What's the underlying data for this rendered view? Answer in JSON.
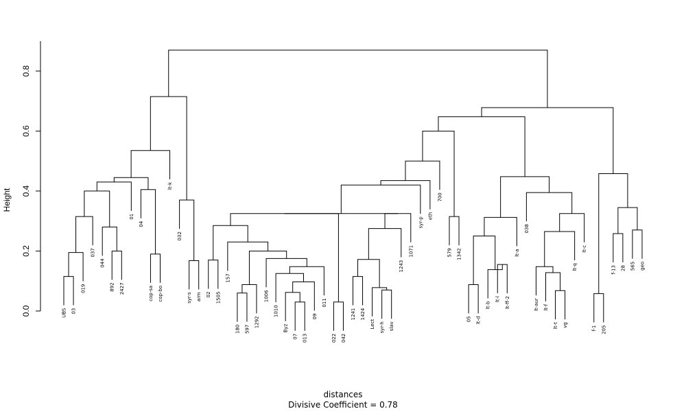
{
  "chart_data": {
    "type": "dendrogram",
    "title": "",
    "ylabel": "Height",
    "xlabel": "distances",
    "sub": "Divisive Coefficient =  0.78",
    "ylim": [
      0,
      0.9
    ],
    "yticks": [
      0.0,
      0.2,
      0.4,
      0.6,
      0.8
    ],
    "leaves": [
      "UBS",
      "03",
      "019",
      "037",
      "044",
      "892",
      "2427",
      "01",
      "04",
      "cop-sa",
      "cop-bo",
      "lt-k",
      "032",
      "syr-s",
      "arm",
      "02",
      "1505",
      "157",
      "180",
      "597",
      "1292",
      "1006",
      "1010",
      "Byz",
      "07",
      "013",
      "09",
      "011",
      "022",
      "042",
      "1241",
      "1424",
      "Lect",
      "syr-h",
      "slav",
      "1243",
      "1071",
      "syr-p",
      "eth",
      "700",
      "579",
      "1342",
      "05",
      "lt-d",
      "lt-b",
      "lt-l",
      "lt-ff-2",
      "lt-a",
      "038",
      "lt-aur",
      "lt-f",
      "lt-t",
      "vg",
      "lt-q",
      "lt-c",
      "f-1",
      "205",
      "f-13",
      "28",
      "565",
      "geo"
    ],
    "merges": [
      {
        "a": "L:UBS",
        "b": "L:03",
        "h": 0.115
      },
      {
        "a": "N:0",
        "b": "L:019",
        "h": 0.195
      },
      {
        "a": "N:1",
        "b": "L:037",
        "h": 0.315
      },
      {
        "a": "L:892",
        "b": "L:2427",
        "h": 0.2
      },
      {
        "a": "L:044",
        "b": "N:3",
        "h": 0.28
      },
      {
        "a": "N:2",
        "b": "N:4",
        "h": 0.4
      },
      {
        "a": "N:5",
        "b": "L:01",
        "h": 0.43
      },
      {
        "a": "L:cop-sa",
        "b": "L:cop-bo",
        "h": 0.19
      },
      {
        "a": "L:04",
        "b": "N:7",
        "h": 0.405
      },
      {
        "a": "N:6",
        "b": "N:8",
        "h": 0.445
      },
      {
        "a": "N:9",
        "b": "L:lt-k",
        "h": 0.535
      },
      {
        "a": "L:syr-s",
        "b": "L:arm",
        "h": 0.168
      },
      {
        "a": "L:032",
        "b": "N:11",
        "h": 0.37
      },
      {
        "a": "N:10",
        "b": "N:12",
        "h": 0.715
      },
      {
        "a": "L:02",
        "b": "L:1505",
        "h": 0.17
      },
      {
        "a": "L:180",
        "b": "L:597",
        "h": 0.06
      },
      {
        "a": "N:15",
        "b": "L:1292",
        "h": 0.088
      },
      {
        "a": "L:07",
        "b": "L:013",
        "h": 0.03
      },
      {
        "a": "L:Byz",
        "b": "N:17",
        "h": 0.062
      },
      {
        "a": "N:18",
        "b": "L:09",
        "h": 0.097
      },
      {
        "a": "L:1010",
        "b": "N:19",
        "h": 0.125
      },
      {
        "a": "N:20",
        "b": "L:011",
        "h": 0.148
      },
      {
        "a": "L:1006",
        "b": "N:21",
        "h": 0.175
      },
      {
        "a": "N:16",
        "b": "N:22",
        "h": 0.2
      },
      {
        "a": "L:157",
        "b": "N:23",
        "h": 0.23
      },
      {
        "a": "N:14",
        "b": "N:24",
        "h": 0.285
      },
      {
        "a": "L:022",
        "b": "L:042",
        "h": 0.03
      },
      {
        "a": "N:25",
        "b": "N:26",
        "h": 0.325
      },
      {
        "a": "L:1241",
        "b": "L:1424",
        "h": 0.115
      },
      {
        "a": "L:syr-h",
        "b": "L:slav",
        "h": 0.07
      },
      {
        "a": "L:Lect",
        "b": "N:29",
        "h": 0.078
      },
      {
        "a": "N:28",
        "b": "N:30",
        "h": 0.172
      },
      {
        "a": "N:31",
        "b": "L:1243",
        "h": 0.275
      },
      {
        "a": "N:32",
        "b": "L:1071",
        "h": 0.325
      },
      {
        "a": "N:27",
        "b": "N:33",
        "h": 0.325
      },
      {
        "a": "N:34",
        "b": "L:syr-p",
        "h": 0.42
      },
      {
        "a": "N:35",
        "b": "L:eth",
        "h": 0.435
      },
      {
        "a": "N:36",
        "b": "L:700",
        "h": 0.5
      },
      {
        "a": "L:579",
        "b": "L:1342",
        "h": 0.315
      },
      {
        "a": "N:37",
        "b": "N:38",
        "h": 0.6
      },
      {
        "a": "L:05",
        "b": "L:lt-d",
        "h": 0.088
      },
      {
        "a": "L:lt-l",
        "b": "L:lt-ff-2",
        "h": 0.155
      },
      {
        "a": "L:lt-b",
        "b": "N:41",
        "h": 0.138
      },
      {
        "a": "N:40",
        "b": "N:42",
        "h": 0.25
      },
      {
        "a": "N:43",
        "b": "L:lt-a",
        "h": 0.312
      },
      {
        "a": "L:lt-t",
        "b": "L:vg",
        "h": 0.068
      },
      {
        "a": "L:lt-f",
        "b": "N:45",
        "h": 0.128
      },
      {
        "a": "L:lt-aur",
        "b": "N:46",
        "h": 0.148
      },
      {
        "a": "N:47",
        "b": "L:lt-q",
        "h": 0.265
      },
      {
        "a": "N:48",
        "b": "L:lt-c",
        "h": 0.325
      },
      {
        "a": "L:038",
        "b": "N:49",
        "h": 0.395
      },
      {
        "a": "N:44",
        "b": "N:50",
        "h": 0.448
      },
      {
        "a": "N:39",
        "b": "N:51",
        "h": 0.648
      },
      {
        "a": "L:f-1",
        "b": "L:205",
        "h": 0.058
      },
      {
        "a": "L:f-13",
        "b": "L:28",
        "h": 0.258
      },
      {
        "a": "L:565",
        "b": "L:geo",
        "h": 0.27
      },
      {
        "a": "N:54",
        "b": "N:55",
        "h": 0.345
      },
      {
        "a": "N:53",
        "b": "N:56",
        "h": 0.458
      },
      {
        "a": "N:52",
        "b": "N:57",
        "h": 0.678
      },
      {
        "a": "N:13",
        "b": "N:58",
        "h": 0.87
      }
    ]
  }
}
